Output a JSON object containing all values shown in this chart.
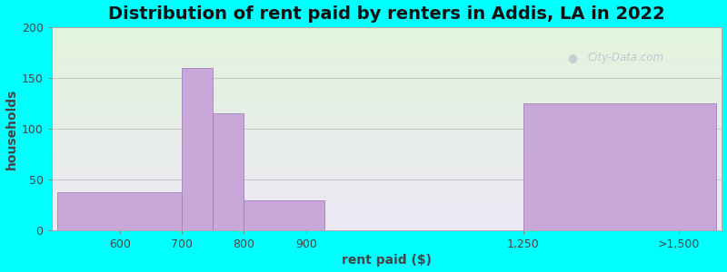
{
  "title": "Distribution of rent paid by renters in Addis, LA in 2022",
  "xlabel": "rent paid ($)",
  "ylabel": "households",
  "bar_lefts": [
    500,
    700,
    750,
    800,
    1250
  ],
  "bar_rights": [
    700,
    750,
    800,
    930,
    1560
  ],
  "bar_heights": [
    38,
    160,
    115,
    30,
    125
  ],
  "xtick_positions": [
    600,
    700,
    800,
    900,
    1250,
    1500
  ],
  "xtick_labels": [
    "600",
    "700",
    "800",
    "900",
    "1,250",
    ">1,500"
  ],
  "xlim": [
    490,
    1570
  ],
  "ylim": [
    0,
    200
  ],
  "yticks": [
    0,
    50,
    100,
    150,
    200
  ],
  "bar_color": "#C8A8D8",
  "bar_edgecolor": "#A080B8",
  "background_outer": "#00FFFF",
  "bg_top_color": "#E2F5DC",
  "bg_bottom_color": "#EDE8F5",
  "title_fontsize": 14,
  "axis_label_fontsize": 10,
  "tick_fontsize": 9,
  "watermark": "City-Data.com"
}
